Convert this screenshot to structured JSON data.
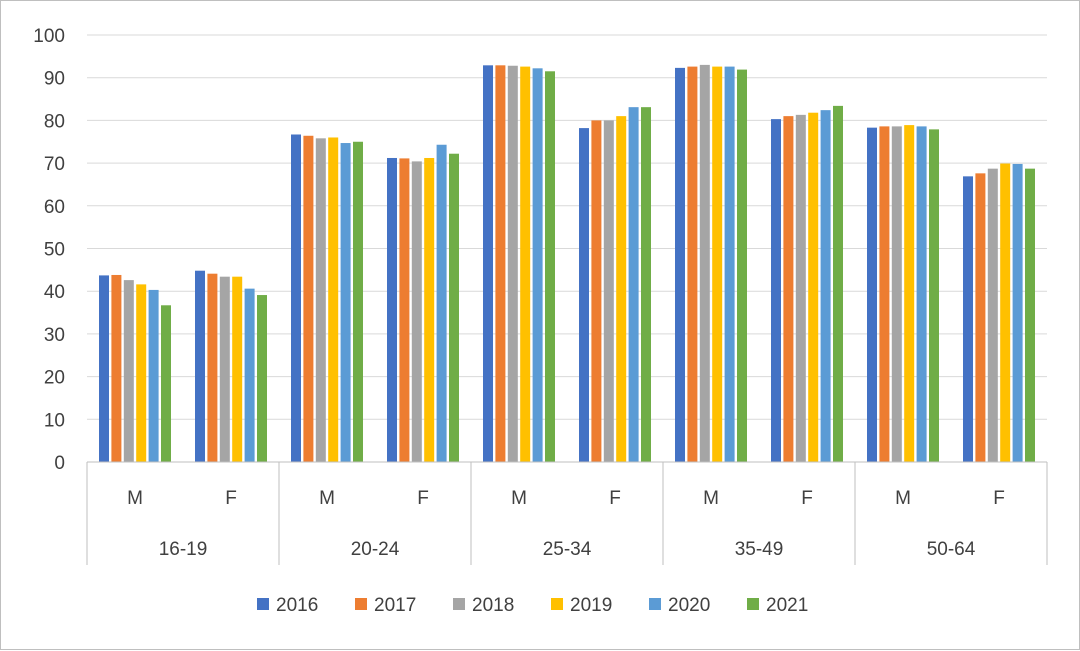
{
  "chart_data": {
    "type": "bar",
    "ylim": [
      0,
      100
    ],
    "yticks": [
      0,
      10,
      20,
      30,
      40,
      50,
      60,
      70,
      80,
      90,
      100
    ],
    "grid": true,
    "legend_position": "bottom",
    "age_groups": [
      "16-19",
      "20-24",
      "25-34",
      "35-49",
      "50-64"
    ],
    "sexes": [
      "M",
      "F"
    ],
    "categories": [
      "16-19 M",
      "16-19 F",
      "20-24 M",
      "20-24 F",
      "25-34 M",
      "25-34 F",
      "35-49 M",
      "35-49 F",
      "50-64 M",
      "50-64 F"
    ],
    "series": [
      {
        "name": "2016",
        "color": "#4472c4",
        "values": [
          43.7,
          44.8,
          76.7,
          71.2,
          92.9,
          78.2,
          92.3,
          80.3,
          78.3,
          66.9
        ]
      },
      {
        "name": "2017",
        "color": "#ed7d31",
        "values": [
          43.8,
          44.1,
          76.4,
          71.1,
          92.9,
          80.0,
          92.6,
          81.0,
          78.6,
          67.6
        ]
      },
      {
        "name": "2018",
        "color": "#a5a5a5",
        "values": [
          42.6,
          43.4,
          75.8,
          70.4,
          92.8,
          80.0,
          93.0,
          81.3,
          78.6,
          68.7
        ]
      },
      {
        "name": "2019",
        "color": "#ffc000",
        "values": [
          41.6,
          43.4,
          76.0,
          71.2,
          92.6,
          81.0,
          92.6,
          81.8,
          78.9,
          69.9
        ]
      },
      {
        "name": "2020",
        "color": "#5b9bd5",
        "values": [
          40.3,
          40.6,
          74.7,
          74.3,
          92.2,
          83.1,
          92.6,
          82.4,
          78.6,
          69.8
        ]
      },
      {
        "name": "2021",
        "color": "#70ad47",
        "values": [
          36.7,
          39.1,
          75.0,
          72.2,
          91.5,
          83.1,
          91.9,
          83.4,
          77.9,
          68.7
        ]
      }
    ]
  }
}
